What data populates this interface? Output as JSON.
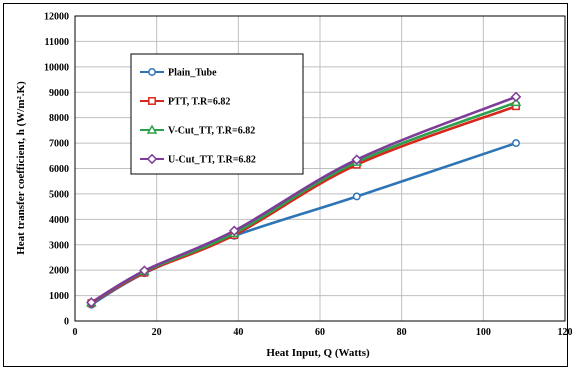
{
  "chart_data": {
    "type": "line",
    "title": "",
    "xlabel": "Heat Input, Q (Watts)",
    "ylabel": "Heat transfer coefficient, h (W/m².K)",
    "xlim": [
      0,
      120
    ],
    "ylim": [
      0,
      12000
    ],
    "xticks": [
      0,
      20,
      40,
      60,
      80,
      100,
      120
    ],
    "yticks": [
      0,
      1000,
      2000,
      3000,
      4000,
      5000,
      6000,
      7000,
      8000,
      9000,
      10000,
      11000,
      12000
    ],
    "grid": true,
    "legend_position": "upper-left",
    "series": [
      {
        "name": "Plain_Tube",
        "color": "#2e75b6",
        "marker": "circle",
        "x": [
          4,
          17,
          39,
          69,
          108
        ],
        "y": [
          640,
          1880,
          3350,
          4900,
          7000
        ]
      },
      {
        "name": "PTT, T.R=6.82",
        "color": "#d9261c",
        "marker": "square",
        "x": [
          4,
          17,
          39,
          69,
          108
        ],
        "y": [
          700,
          1900,
          3380,
          6150,
          8450
        ]
      },
      {
        "name": "V-Cut_TT, T.R=6.82",
        "color": "#2ca04c",
        "marker": "triangle",
        "x": [
          4,
          17,
          39,
          69,
          108
        ],
        "y": [
          720,
          1950,
          3450,
          6250,
          8600
        ]
      },
      {
        "name": "U-Cut_TT, T.R=6.82",
        "color": "#7d3c98",
        "marker": "diamond",
        "x": [
          4,
          17,
          39,
          69,
          108
        ],
        "y": [
          730,
          1980,
          3550,
          6350,
          8820
        ]
      }
    ]
  }
}
